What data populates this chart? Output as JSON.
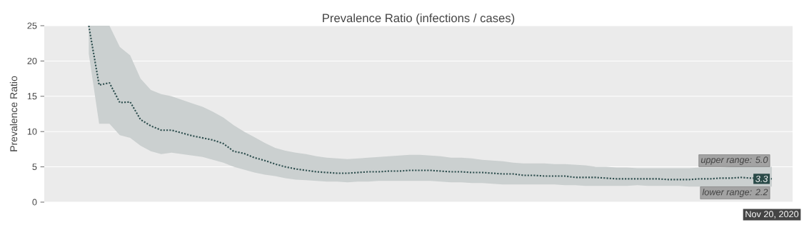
{
  "chart_data": {
    "type": "line",
    "title": "Prevalence Ratio (infections / cases)",
    "ylabel": "Prevalence Ratio",
    "categories": [
      null,
      null,
      null,
      null,
      null,
      null,
      null,
      null,
      null,
      null,
      null,
      null,
      null,
      null,
      null,
      null,
      null,
      null,
      null,
      null,
      null,
      null,
      null,
      null,
      null,
      null,
      null,
      null,
      null,
      null,
      null,
      null,
      null,
      null,
      null,
      null,
      null,
      null,
      null,
      null,
      null,
      null,
      null,
      null,
      null,
      null,
      null,
      null,
      null,
      null,
      null,
      null,
      null,
      null,
      null,
      null,
      null,
      null,
      null,
      null,
      null,
      null,
      null,
      null,
      null,
      null,
      "Nov 20, 2020"
    ],
    "ylim": [
      0,
      25
    ],
    "yticks": [
      0,
      5,
      10,
      15,
      20,
      25
    ],
    "grid": "y",
    "line_style": "dotted",
    "series": [
      {
        "color": "#2f4f4f",
        "values": [
          25,
          16.6,
          16.9,
          14.1,
          14.2,
          11.7,
          10.8,
          10.2,
          10.2,
          9.8,
          9.4,
          9.1,
          8.8,
          8.3,
          7.2,
          6.9,
          6.3,
          5.9,
          5.4,
          5.0,
          4.7,
          4.5,
          4.3,
          4.2,
          4.1,
          4.1,
          4.2,
          4.3,
          4.3,
          4.4,
          4.4,
          4.5,
          4.5,
          4.5,
          4.4,
          4.3,
          4.3,
          4.2,
          4.2,
          4.1,
          4.0,
          4.0,
          3.8,
          3.8,
          3.7,
          3.7,
          3.7,
          3.5,
          3.5,
          3.5,
          3.4,
          3.3,
          3.3,
          3.3,
          3.3,
          3.3,
          3.2,
          3.2,
          3.2,
          3.3,
          3.3,
          3.4,
          3.4,
          3.5,
          3.4,
          3.4,
          3.3
        ],
        "upper": [
          25,
          25,
          25,
          22,
          20.8,
          17.5,
          15.9,
          15.3,
          15.0,
          14.5,
          14.0,
          13.5,
          12.8,
          12.0,
          10.9,
          10.0,
          9.2,
          8.4,
          7.7,
          7.3,
          7.0,
          6.8,
          6.5,
          6.3,
          6.2,
          6.1,
          6.2,
          6.3,
          6.4,
          6.5,
          6.6,
          6.7,
          6.7,
          6.6,
          6.5,
          6.3,
          6.3,
          6.2,
          6.0,
          5.9,
          5.8,
          5.6,
          5.5,
          5.5,
          5.5,
          5.4,
          5.4,
          5.3,
          5.2,
          5.0,
          5.0,
          4.9,
          4.9,
          4.8,
          4.8,
          4.8,
          4.8,
          4.8,
          4.8,
          4.9,
          4.9,
          4.9,
          5.0,
          5.0,
          5.0,
          5.0,
          5.0
        ],
        "lower": [
          21,
          11.1,
          11.1,
          9.5,
          9.1,
          8.0,
          7.2,
          6.8,
          7.0,
          6.8,
          6.6,
          6.4,
          6.0,
          5.6,
          5.0,
          4.6,
          4.2,
          3.9,
          3.7,
          3.4,
          3.2,
          3.1,
          3.0,
          2.9,
          2.9,
          2.8,
          2.9,
          2.9,
          3.0,
          3.0,
          3.0,
          3.0,
          3.0,
          3.0,
          2.9,
          2.8,
          2.8,
          2.7,
          2.7,
          2.6,
          2.5,
          2.5,
          2.5,
          2.5,
          2.5,
          2.5,
          2.4,
          2.4,
          2.3,
          2.3,
          2.3,
          2.3,
          2.3,
          2.4,
          2.3,
          2.3,
          2.3,
          2.3,
          2.2,
          2.2,
          2.2,
          2.2,
          2.2,
          2.2,
          2.2,
          2.2,
          2.2
        ]
      }
    ],
    "annotations": [
      {
        "text": "upper range: 5.0",
        "x": "Nov 20, 2020",
        "y": 5.0
      },
      {
        "text": "3.3",
        "x": "Nov 20, 2020",
        "y": 3.3
      },
      {
        "text": "lower range: 2.2",
        "x": "Nov 20, 2020",
        "y": 2.2
      }
    ]
  }
}
